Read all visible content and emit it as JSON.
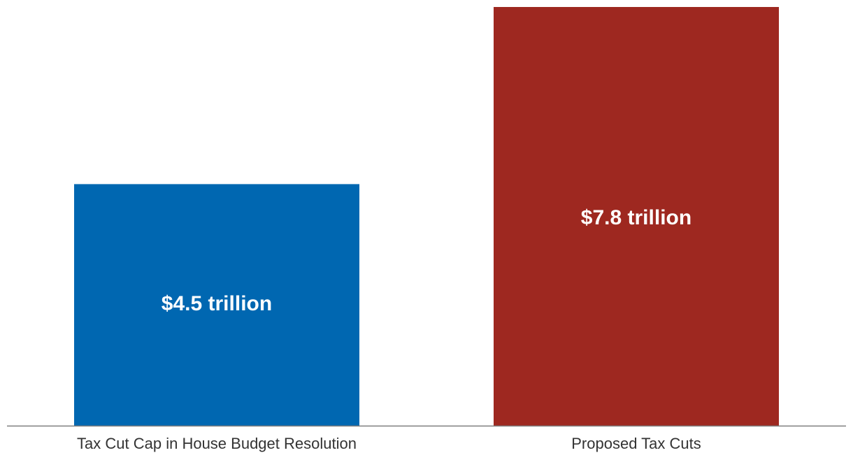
{
  "chart_data": {
    "type": "bar",
    "title": "",
    "xlabel": "",
    "ylabel": "",
    "categories": [
      "Tax Cut Cap in House Budget Resolution",
      "Proposed Tax Cuts"
    ],
    "values": [
      4.5,
      7.8
    ],
    "value_labels": [
      "$4.5 trillion",
      "$7.8 trillion"
    ],
    "colors": [
      "#0067b1",
      "#9e2820"
    ],
    "ylim": [
      0,
      7.8
    ],
    "grid": false,
    "legend": "none",
    "axis_line_color": "#7f7f7f",
    "category_label_color": "#333333",
    "value_label_color": "#ffffff"
  }
}
